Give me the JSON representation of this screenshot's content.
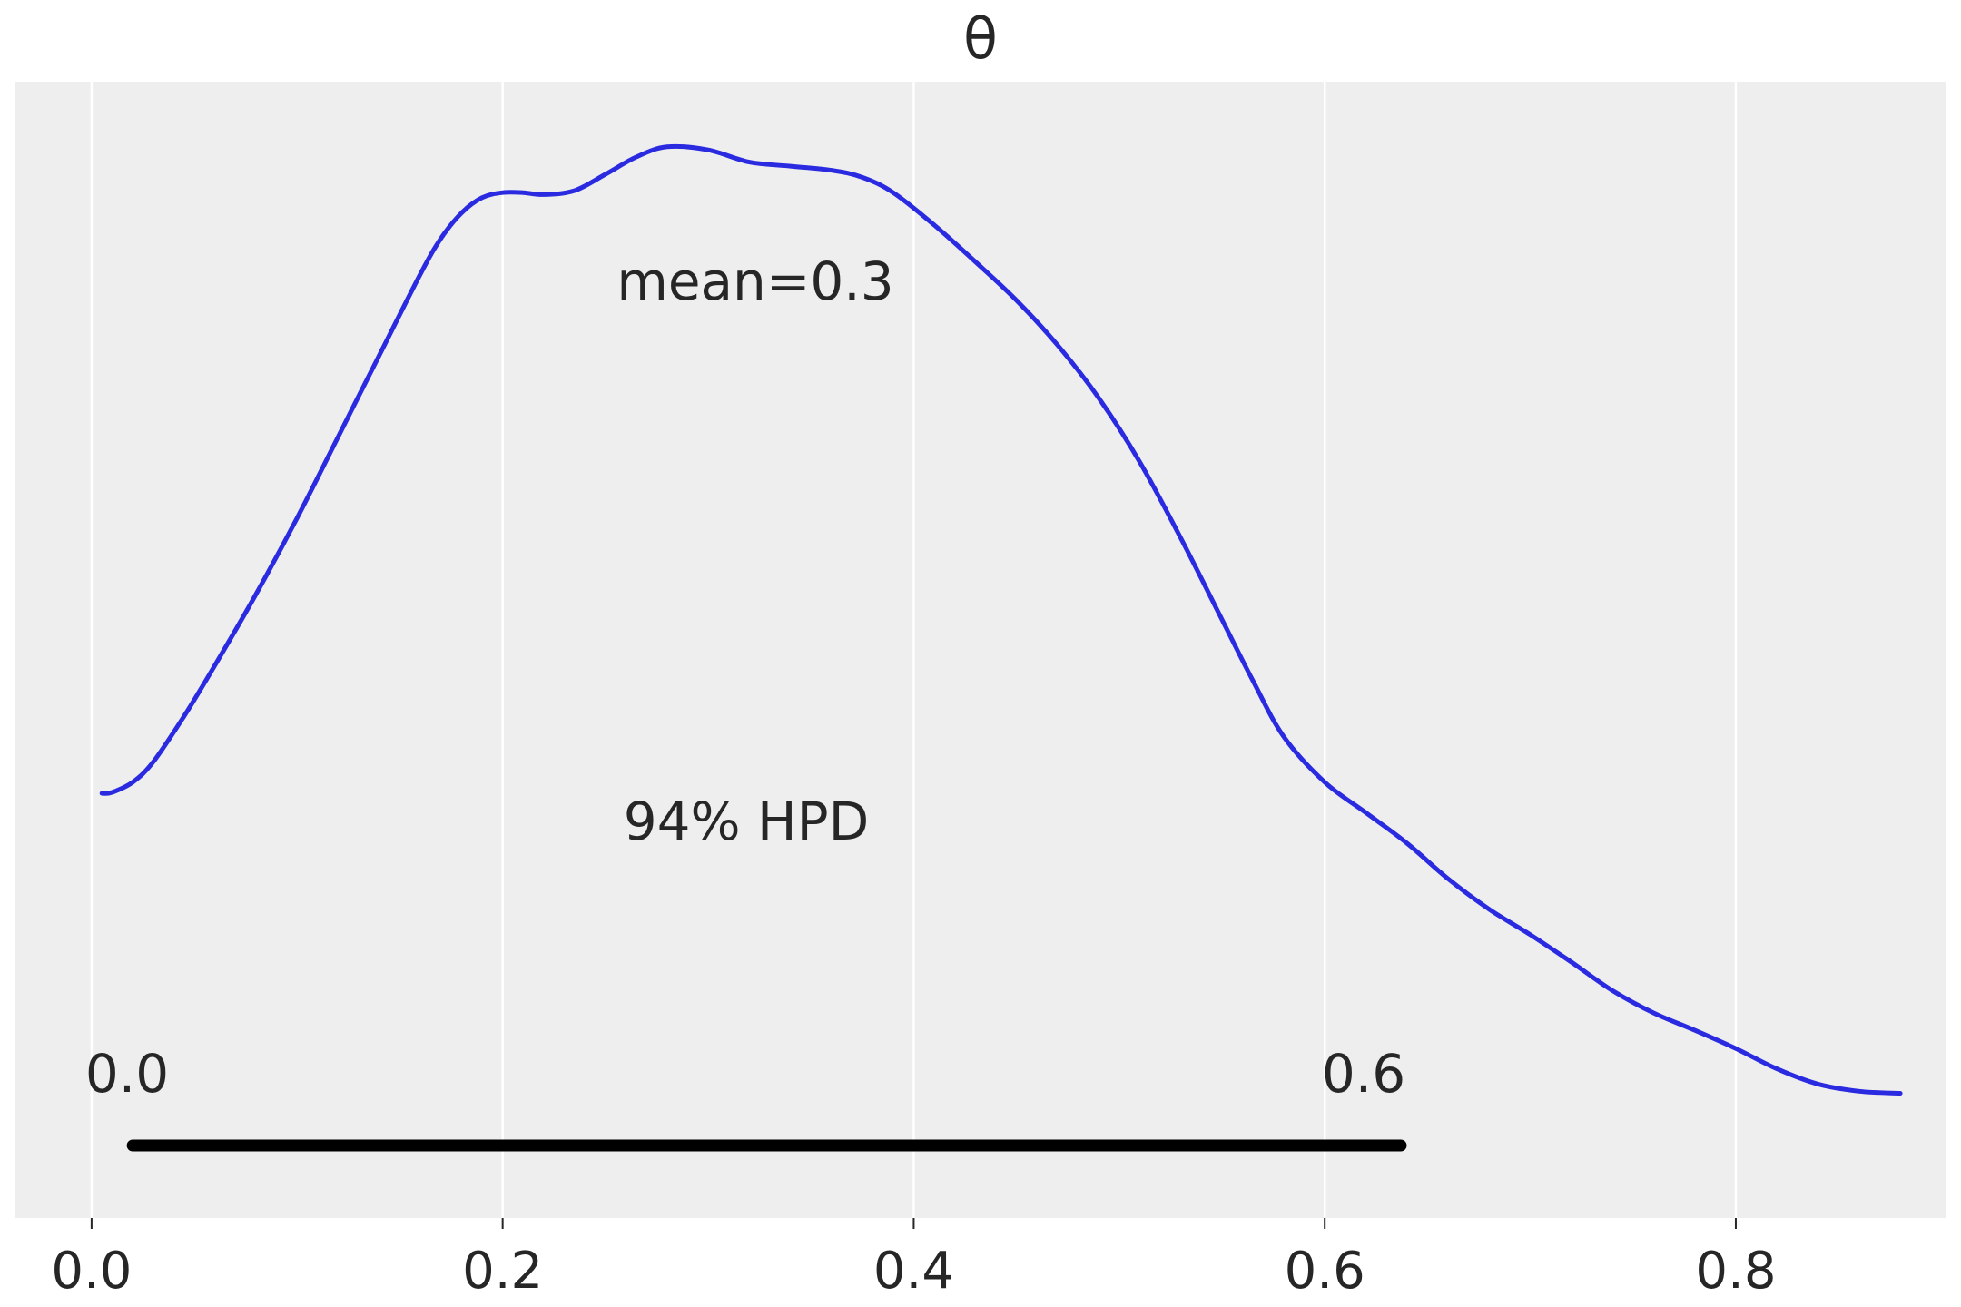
{
  "chart_data": {
    "type": "line",
    "title": "θ",
    "xlabel": "",
    "ylabel": "",
    "xlim": [
      -0.0375,
      0.9025
    ],
    "ylim": [
      0,
      1
    ],
    "grid": true,
    "background": "#eeeeee",
    "grid_color": "#ffffff",
    "x_ticks": [
      0.0,
      0.2,
      0.4,
      0.6,
      0.8
    ],
    "x_tick_labels": [
      "0.0",
      "0.2",
      "0.4",
      "0.6",
      "0.8"
    ],
    "series": [
      {
        "color": "#2a2ae0",
        "x": [
          0.005,
          0.01,
          0.02,
          0.03,
          0.045,
          0.06,
          0.08,
          0.1,
          0.12,
          0.14,
          0.16,
          0.17,
          0.18,
          0.19,
          0.2,
          0.21,
          0.22,
          0.235,
          0.25,
          0.265,
          0.28,
          0.3,
          0.32,
          0.34,
          0.36,
          0.375,
          0.39,
          0.41,
          0.43,
          0.45,
          0.47,
          0.49,
          0.51,
          0.53,
          0.55,
          0.565,
          0.58,
          0.6,
          0.62,
          0.64,
          0.66,
          0.68,
          0.7,
          0.72,
          0.74,
          0.76,
          0.78,
          0.8,
          0.82,
          0.84,
          0.86,
          0.88
        ],
        "y": [
          0.349,
          0.35,
          0.36,
          0.38,
          0.425,
          0.475,
          0.545,
          0.62,
          0.7,
          0.78,
          0.86,
          0.895,
          0.92,
          0.935,
          0.94,
          0.94,
          0.938,
          0.942,
          0.958,
          0.975,
          0.985,
          0.982,
          0.97,
          0.966,
          0.962,
          0.955,
          0.94,
          0.908,
          0.872,
          0.834,
          0.79,
          0.738,
          0.675,
          0.6,
          0.52,
          0.46,
          0.405,
          0.36,
          0.33,
          0.3,
          0.265,
          0.235,
          0.21,
          0.183,
          0.155,
          0.133,
          0.116,
          0.098,
          0.078,
          0.063,
          0.056,
          0.054
        ]
      }
    ],
    "annotations": {
      "mean_label": "mean=0.3",
      "hpd_label": "94% HPD",
      "hpd_low_label": "0.0",
      "hpd_high_label": "0.6"
    },
    "hpd_interval": [
      0.02,
      0.637
    ]
  }
}
